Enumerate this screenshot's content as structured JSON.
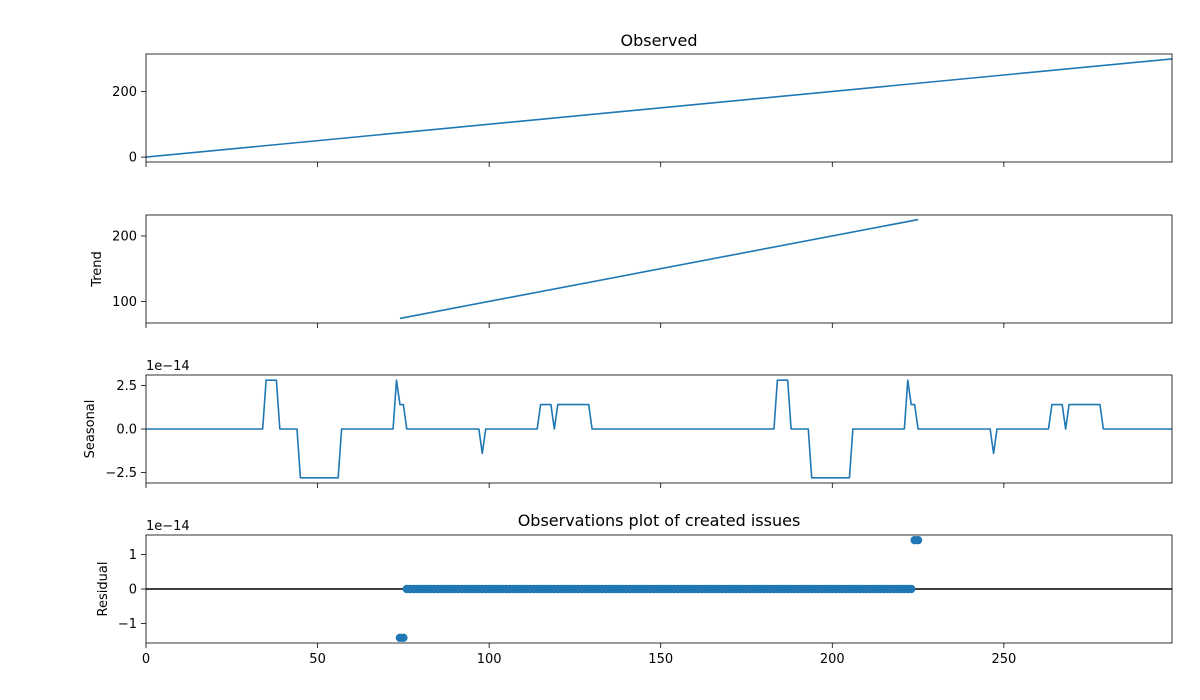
{
  "chart_data": [
    {
      "type": "line",
      "panel": "observed",
      "title": "Observed",
      "ylabel": "",
      "offset_label": "",
      "xlim": [
        0,
        299
      ],
      "ylim": [
        -15,
        314
      ],
      "xticks": [
        0,
        50,
        100,
        150,
        200,
        250
      ],
      "xtick_labels": [
        "0",
        "50",
        "100",
        "150",
        "200",
        "250"
      ],
      "show_xtick_labels": false,
      "yticks": [
        0,
        200
      ],
      "ytick_labels": [
        "0",
        "200"
      ],
      "series": [
        {
          "x": [
            0,
            299
          ],
          "y": [
            0,
            299
          ]
        }
      ]
    },
    {
      "type": "line",
      "panel": "trend",
      "title": "",
      "ylabel": "Trend",
      "offset_label": "",
      "xlim": [
        0,
        299
      ],
      "ylim": [
        67,
        232
      ],
      "xticks": [
        0,
        50,
        100,
        150,
        200,
        250
      ],
      "xtick_labels": [
        "0",
        "50",
        "100",
        "150",
        "200",
        "250"
      ],
      "show_xtick_labels": false,
      "yticks": [
        100,
        200
      ],
      "ytick_labels": [
        "100",
        "200"
      ],
      "series": [
        {
          "x": [
            74,
            225
          ],
          "y": [
            74,
            225
          ]
        }
      ]
    },
    {
      "type": "line",
      "panel": "seasonal",
      "title": "",
      "ylabel": "Seasonal",
      "offset_label": "1e−14",
      "xlim": [
        0,
        299
      ],
      "ylim": [
        -3.1,
        3.1
      ],
      "xticks": [
        0,
        50,
        100,
        150,
        200,
        250
      ],
      "xtick_labels": [
        "0",
        "50",
        "100",
        "150",
        "200",
        "250"
      ],
      "show_xtick_labels": false,
      "yticks": [
        -2.5,
        0,
        2.5
      ],
      "ytick_labels": [
        "−2.5",
        "0.0",
        "2.5"
      ],
      "series": [
        {
          "x": [
            0,
            34,
            35,
            38,
            39,
            44,
            45,
            56,
            57,
            72,
            73,
            74,
            75,
            76,
            97,
            98,
            99,
            114,
            115,
            118,
            119,
            120,
            129,
            130,
            183,
            184,
            187,
            188,
            193,
            194,
            205,
            206,
            221,
            222,
            223,
            224,
            225,
            246,
            247,
            248,
            263,
            264,
            267,
            268,
            269,
            278,
            279,
            299
          ],
          "y": [
            0,
            0,
            2.8,
            2.8,
            0,
            0,
            -2.8,
            -2.8,
            0,
            0,
            2.8,
            1.4,
            1.4,
            0,
            0,
            -1.4,
            0,
            0,
            1.4,
            1.4,
            0,
            1.4,
            1.4,
            0,
            0,
            2.8,
            2.8,
            0,
            0,
            -2.8,
            -2.8,
            0,
            0,
            2.8,
            1.4,
            1.4,
            0,
            0,
            -1.4,
            0,
            0,
            1.4,
            1.4,
            0,
            1.4,
            1.4,
            0,
            0
          ]
        }
      ]
    },
    {
      "type": "scatter",
      "panel": "residual",
      "title": "Observations plot of created issues",
      "ylabel": "Residual",
      "offset_label": "1e−14",
      "xlim": [
        0,
        299
      ],
      "ylim": [
        -1.57,
        1.57
      ],
      "xticks": [
        0,
        50,
        100,
        150,
        200,
        250
      ],
      "xtick_labels": [
        "0",
        "50",
        "100",
        "150",
        "200",
        "250"
      ],
      "show_xtick_labels": true,
      "yticks": [
        -1,
        0,
        1
      ],
      "ytick_labels": [
        "−1",
        "0",
        "1"
      ],
      "zero_line": true,
      "series": [
        {
          "points": [
            {
              "x": 74,
              "y": -1.42
            },
            {
              "x": 75,
              "y": -1.42
            },
            {
              "range": [
                76,
                223
              ],
              "y": 0
            },
            {
              "x": 224,
              "y": 1.42
            },
            {
              "x": 225,
              "y": 1.42
            }
          ]
        }
      ]
    }
  ],
  "colors": {
    "series": "#1f77b4",
    "axis": "#000000",
    "background": "#ffffff"
  }
}
